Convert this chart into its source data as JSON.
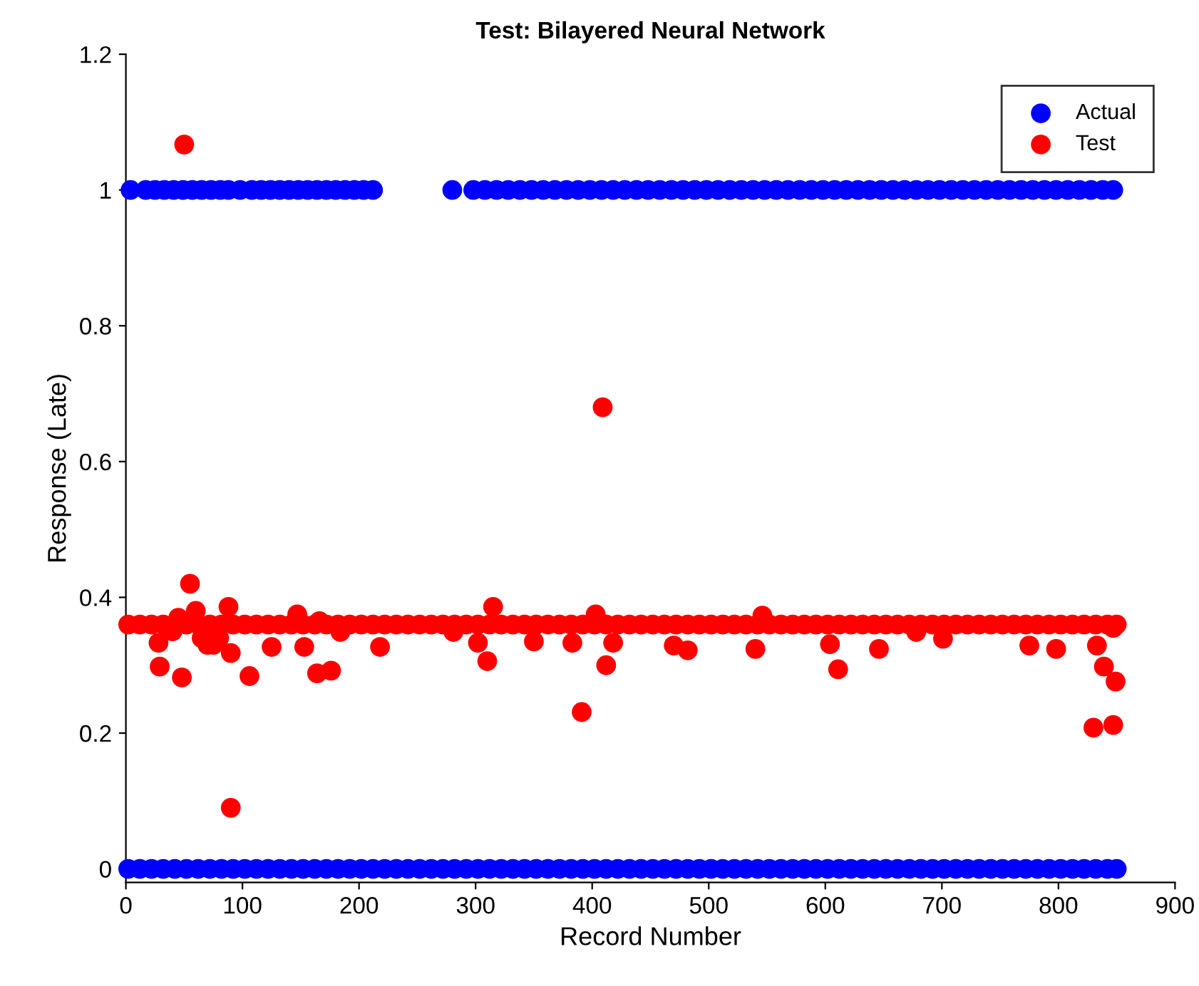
{
  "chart_data": {
    "type": "scatter",
    "title": "Test: Bilayered Neural Network",
    "xlabel": "Record Number",
    "ylabel": "Response (Late)",
    "xlim": [
      0,
      900
    ],
    "xticks": [
      0,
      100,
      200,
      300,
      400,
      500,
      600,
      700,
      800,
      900
    ],
    "ylim": [
      -0.02,
      1.2
    ],
    "yticks": [
      0,
      0.2,
      0.4,
      0.6,
      0.8,
      1,
      1.2
    ],
    "legend": "top right",
    "marker": "circle",
    "grid": false,
    "series": [
      {
        "name": "Actual",
        "color": "#0000ff",
        "x": [
          2,
          12,
          22,
          32,
          42,
          52,
          62,
          72,
          82,
          92,
          102,
          112,
          122,
          132,
          142,
          152,
          162,
          172,
          182,
          192,
          202,
          212,
          222,
          232,
          242,
          252,
          262,
          272,
          282,
          292,
          302,
          312,
          322,
          332,
          342,
          352,
          362,
          372,
          382,
          392,
          402,
          412,
          422,
          432,
          442,
          452,
          462,
          472,
          482,
          492,
          502,
          512,
          522,
          532,
          542,
          552,
          562,
          572,
          582,
          592,
          602,
          612,
          622,
          632,
          642,
          652,
          662,
          672,
          682,
          692,
          702,
          712,
          722,
          732,
          742,
          752,
          762,
          772,
          782,
          792,
          802,
          812,
          822,
          832,
          842,
          850,
          4,
          17,
          25,
          33,
          41,
          49,
          57,
          65,
          73,
          81,
          88,
          98,
          108,
          116,
          124,
          132,
          140,
          148,
          156,
          164,
          172,
          180,
          188,
          196,
          204,
          212,
          280,
          298,
          308,
          318,
          328,
          338,
          348,
          358,
          368,
          378,
          388,
          398,
          408,
          418,
          428,
          438,
          448,
          458,
          468,
          478,
          488,
          498,
          508,
          518,
          528,
          538,
          548,
          558,
          568,
          578,
          588,
          598,
          608,
          618,
          628,
          638,
          648,
          658,
          668,
          678,
          688,
          698,
          708,
          718,
          728,
          738,
          748,
          758,
          768,
          778,
          788,
          798,
          808,
          818,
          828,
          838,
          847
        ],
        "values": [
          0,
          0,
          0,
          0,
          0,
          0,
          0,
          0,
          0,
          0,
          0,
          0,
          0,
          0,
          0,
          0,
          0,
          0,
          0,
          0,
          0,
          0,
          0,
          0,
          0,
          0,
          0,
          0,
          0,
          0,
          0,
          0,
          0,
          0,
          0,
          0,
          0,
          0,
          0,
          0,
          0,
          0,
          0,
          0,
          0,
          0,
          0,
          0,
          0,
          0,
          0,
          0,
          0,
          0,
          0,
          0,
          0,
          0,
          0,
          0,
          0,
          0,
          0,
          0,
          0,
          0,
          0,
          0,
          0,
          0,
          0,
          0,
          0,
          0,
          0,
          0,
          0,
          0,
          0,
          0,
          0,
          0,
          0,
          0,
          0,
          0,
          1,
          1,
          1,
          1,
          1,
          1,
          1,
          1,
          1,
          1,
          1,
          1,
          1,
          1,
          1,
          1,
          1,
          1,
          1,
          1,
          1,
          1,
          1,
          1,
          1,
          1,
          1,
          1,
          1,
          1,
          1,
          1,
          1,
          1,
          1,
          1,
          1,
          1,
          1,
          1,
          1,
          1,
          1,
          1,
          1,
          1,
          1,
          1,
          1,
          1,
          1,
          1,
          1,
          1,
          1,
          1,
          1,
          1,
          1,
          1,
          1,
          1,
          1,
          1,
          1,
          1,
          1,
          1,
          1,
          1,
          1,
          1,
          1,
          1,
          1,
          1,
          1,
          1,
          1,
          1,
          1,
          1,
          1
        ]
      },
      {
        "name": "Test",
        "color": "#ff0000",
        "x": [
          2,
          12,
          22,
          32,
          52,
          62,
          72,
          82,
          92,
          102,
          112,
          122,
          132,
          142,
          152,
          162,
          172,
          182,
          192,
          202,
          212,
          222,
          232,
          242,
          252,
          262,
          272,
          282,
          292,
          302,
          312,
          322,
          332,
          342,
          352,
          362,
          372,
          382,
          392,
          402,
          412,
          422,
          432,
          442,
          452,
          462,
          472,
          482,
          492,
          502,
          512,
          522,
          532,
          542,
          552,
          562,
          572,
          582,
          592,
          602,
          612,
          622,
          632,
          642,
          652,
          662,
          672,
          682,
          692,
          702,
          712,
          722,
          732,
          742,
          752,
          762,
          772,
          782,
          792,
          802,
          812,
          822,
          832,
          842,
          850,
          50,
          409,
          90,
          391,
          55,
          106,
          164,
          176,
          310,
          412,
          88,
          315,
          403,
          28,
          125,
          153,
          218,
          302,
          350,
          383,
          418,
          29,
          48,
          184,
          281,
          470,
          482,
          540,
          604,
          646,
          678,
          701,
          775,
          798,
          833,
          847,
          546,
          611,
          830,
          847,
          849,
          839,
          40,
          45,
          60,
          65,
          70,
          75,
          80,
          90,
          147,
          166
        ],
        "values": [
          0.36,
          0.36,
          0.36,
          0.36,
          0.36,
          0.36,
          0.36,
          0.36,
          0.36,
          0.36,
          0.36,
          0.36,
          0.36,
          0.36,
          0.36,
          0.36,
          0.36,
          0.36,
          0.36,
          0.36,
          0.36,
          0.36,
          0.36,
          0.36,
          0.36,
          0.36,
          0.36,
          0.36,
          0.36,
          0.36,
          0.36,
          0.36,
          0.36,
          0.36,
          0.36,
          0.36,
          0.36,
          0.36,
          0.36,
          0.36,
          0.36,
          0.36,
          0.36,
          0.36,
          0.36,
          0.36,
          0.36,
          0.36,
          0.36,
          0.36,
          0.36,
          0.36,
          0.36,
          0.36,
          0.36,
          0.36,
          0.36,
          0.36,
          0.36,
          0.36,
          0.36,
          0.36,
          0.36,
          0.36,
          0.36,
          0.36,
          0.36,
          0.36,
          0.36,
          0.36,
          0.36,
          0.36,
          0.36,
          0.36,
          0.36,
          0.36,
          0.36,
          0.36,
          0.36,
          0.36,
          0.36,
          0.36,
          0.36,
          0.36,
          0.36,
          1.067,
          0.68,
          0.09,
          0.231,
          0.42,
          0.284,
          0.288,
          0.292,
          0.306,
          0.3,
          0.386,
          0.386,
          0.375,
          0.333,
          0.327,
          0.327,
          0.327,
          0.333,
          0.335,
          0.333,
          0.333,
          0.298,
          0.282,
          0.349,
          0.349,
          0.329,
          0.322,
          0.324,
          0.331,
          0.324,
          0.349,
          0.339,
          0.329,
          0.324,
          0.329,
          0.355,
          0.373,
          0.294,
          0.208,
          0.212,
          0.276,
          0.298,
          0.35,
          0.37,
          0.38,
          0.34,
          0.33,
          0.33,
          0.34,
          0.318,
          0.375,
          0.365
        ]
      }
    ]
  }
}
